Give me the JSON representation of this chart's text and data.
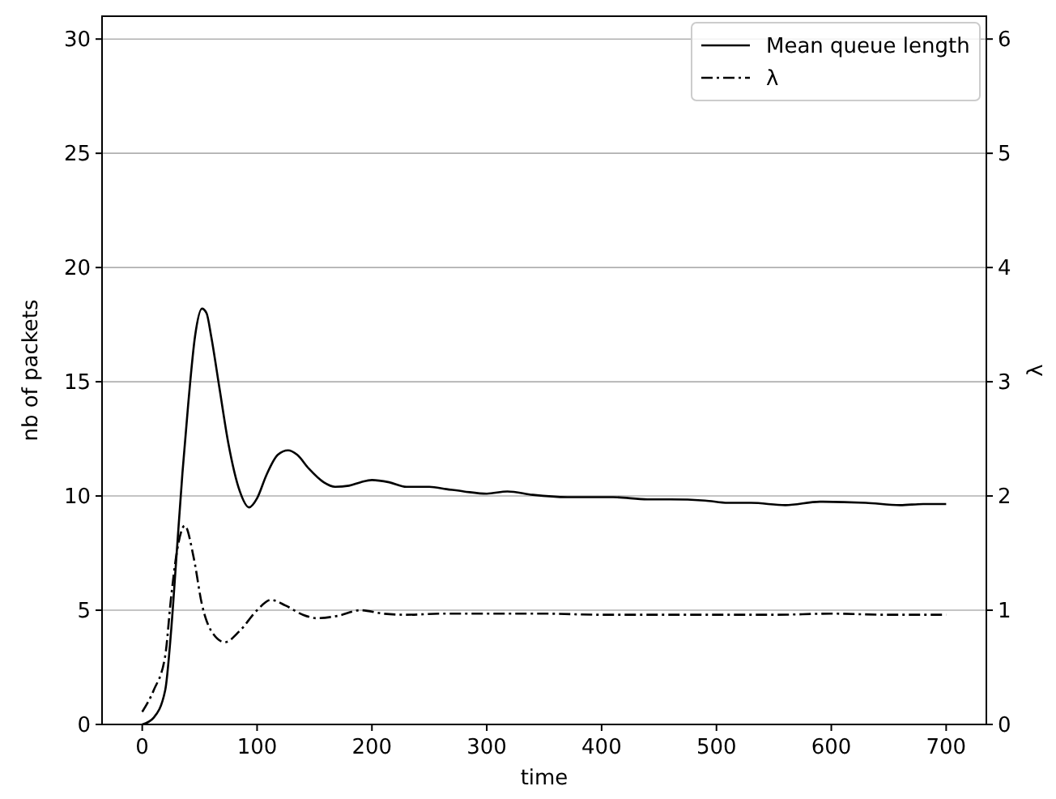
{
  "chart_data": {
    "type": "line",
    "xlabel": "time",
    "ylabel": "nb of packets",
    "y2label": "λ",
    "xlim": [
      -35,
      735
    ],
    "xticks": [
      0,
      100,
      200,
      300,
      400,
      500,
      600,
      700
    ],
    "ylim": [
      0,
      31
    ],
    "yticks": [
      0,
      5,
      10,
      15,
      20,
      25,
      30
    ],
    "y2lim": [
      0,
      6.2
    ],
    "y2ticks": [
      0,
      1,
      2,
      3,
      4,
      5,
      6
    ],
    "grid": "y",
    "legend": "top right",
    "marker": "none",
    "series": [
      {
        "name": "Mean queue length",
        "color": "#000000",
        "line_style": "solid",
        "x": [
          0,
          10,
          20,
          25,
          30,
          35,
          40,
          46,
          52,
          56,
          60,
          67,
          75,
          85,
          93,
          100,
          108,
          118,
          127,
          135,
          145,
          158,
          168,
          180,
          190,
          200,
          215,
          230,
          250,
          265,
          280,
          300,
          318,
          340,
          370,
          410,
          440,
          460,
          490,
          510,
          530,
          560,
          590,
          630,
          660,
          680,
          700
        ],
        "values": [
          0,
          0.3,
          1.5,
          4,
          7.5,
          11,
          14,
          17,
          18.2,
          18,
          17,
          14.8,
          12.3,
          10.2,
          9.5,
          9.9,
          10.9,
          11.8,
          12,
          11.8,
          11.2,
          10.6,
          10.4,
          10.45,
          10.6,
          10.7,
          10.6,
          10.4,
          10.4,
          10.3,
          10.2,
          10.1,
          10.2,
          10.05,
          9.95,
          9.95,
          9.85,
          9.85,
          9.8,
          9.7,
          9.7,
          9.6,
          9.75,
          9.7,
          9.6,
          9.65,
          9.65
        ]
      },
      {
        "name": "λ",
        "color": "#000000",
        "line_style": "dashdot",
        "axis": "y2",
        "x": [
          0,
          10,
          20,
          25,
          30,
          37,
          45,
          52,
          60,
          72,
          85,
          100,
          112,
          125,
          140,
          152,
          170,
          190,
          210,
          230,
          260,
          300,
          350,
          400,
          450,
          500,
          550,
          600,
          650,
          700
        ],
        "values": [
          0.11,
          0.3,
          0.6,
          1.1,
          1.5,
          1.74,
          1.45,
          1.05,
          0.82,
          0.72,
          0.82,
          1.0,
          1.09,
          1.04,
          0.96,
          0.93,
          0.95,
          1.0,
          0.97,
          0.96,
          0.97,
          0.97,
          0.97,
          0.96,
          0.96,
          0.96,
          0.96,
          0.97,
          0.96,
          0.96
        ]
      }
    ]
  }
}
